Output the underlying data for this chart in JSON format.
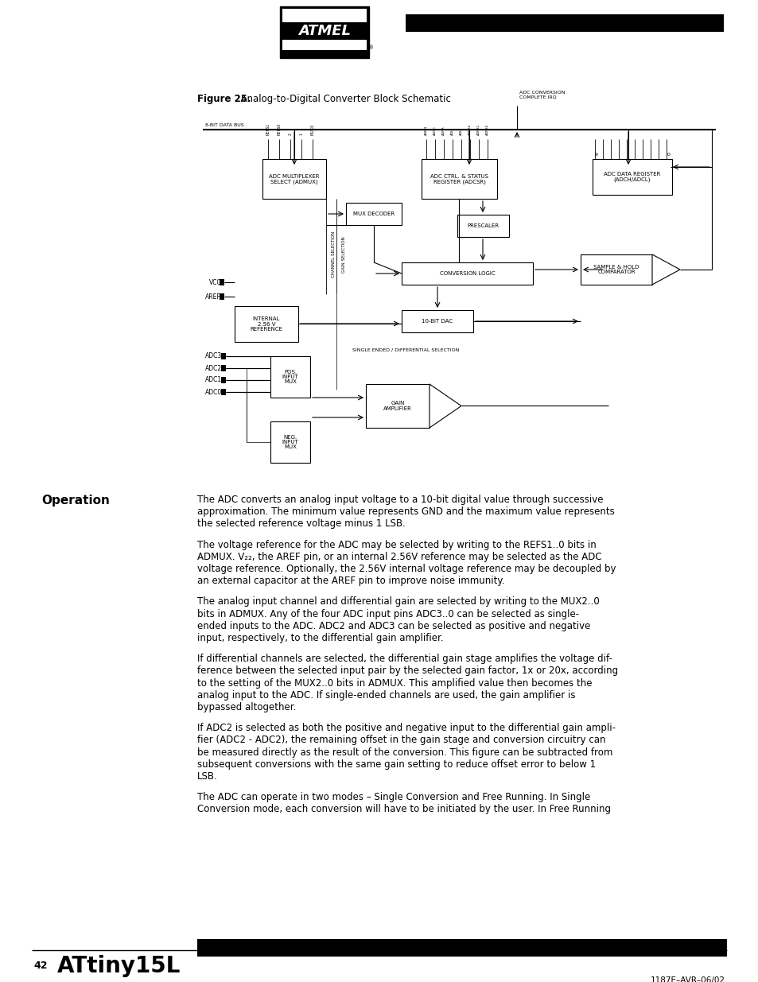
{
  "bg_color": "#ffffff",
  "text_color": "#000000",
  "page_width": 9.54,
  "page_height": 12.35,
  "figure_caption_bold": "Figure 25.",
  "figure_caption_normal": "  Analog-to-Digital Converter Block Schematic",
  "section_title": "Operation",
  "footer_page": "42",
  "footer_title": "ATtiny15L",
  "footer_right": "1187E–AVR–06/02",
  "paragraphs": [
    "The ADC converts an analog input voltage to a 10-bit digital value through successive\napproximation. The minimum value represents GND and the maximum value represents\nthe selected reference voltage minus 1 LSB.",
    "The voltage reference for the ADC may be selected by writing to the REFS1..0 bits in\nADMUX. V₂₂, the AREF pin, or an internal 2.56V reference may be selected as the ADC\nvoltage reference. Optionally, the 2.56V internal voltage reference may be decoupled by\nan external capacitor at the AREF pin to improve noise immunity.",
    "The analog input channel and differential gain are selected by writing to the MUX2..0\nbits in ADMUX. Any of the four ADC input pins ADC3..0 can be selected as single-\nended inputs to the ADC. ADC2 and ADC3 can be selected as positive and negative\ninput, respectively, to the differential gain amplifier.",
    "If differential channels are selected, the differential gain stage amplifies the voltage dif-\nference between the selected input pair by the selected gain factor, 1x or 20x, according\nto the setting of the MUX2..0 bits in ADMUX. This amplified value then becomes the\nanalog input to the ADC. If single-ended channels are used, the gain amplifier is\nbypassed altogether.",
    "If ADC2 is selected as both the positive and negative input to the differential gain ampli-\nfier (ADC2 - ADC2), the remaining offset in the gain stage and conversion circuitry can\nbe measured directly as the result of the conversion. This figure can be subtracted from\nsubsequent conversions with the same gain setting to reduce offset error to below 1\nLSB.",
    "The ADC can operate in two modes – Single Conversion and Free Running. In Single\nConversion mode, each conversion will have to be initiated by the user. In Free Running"
  ]
}
